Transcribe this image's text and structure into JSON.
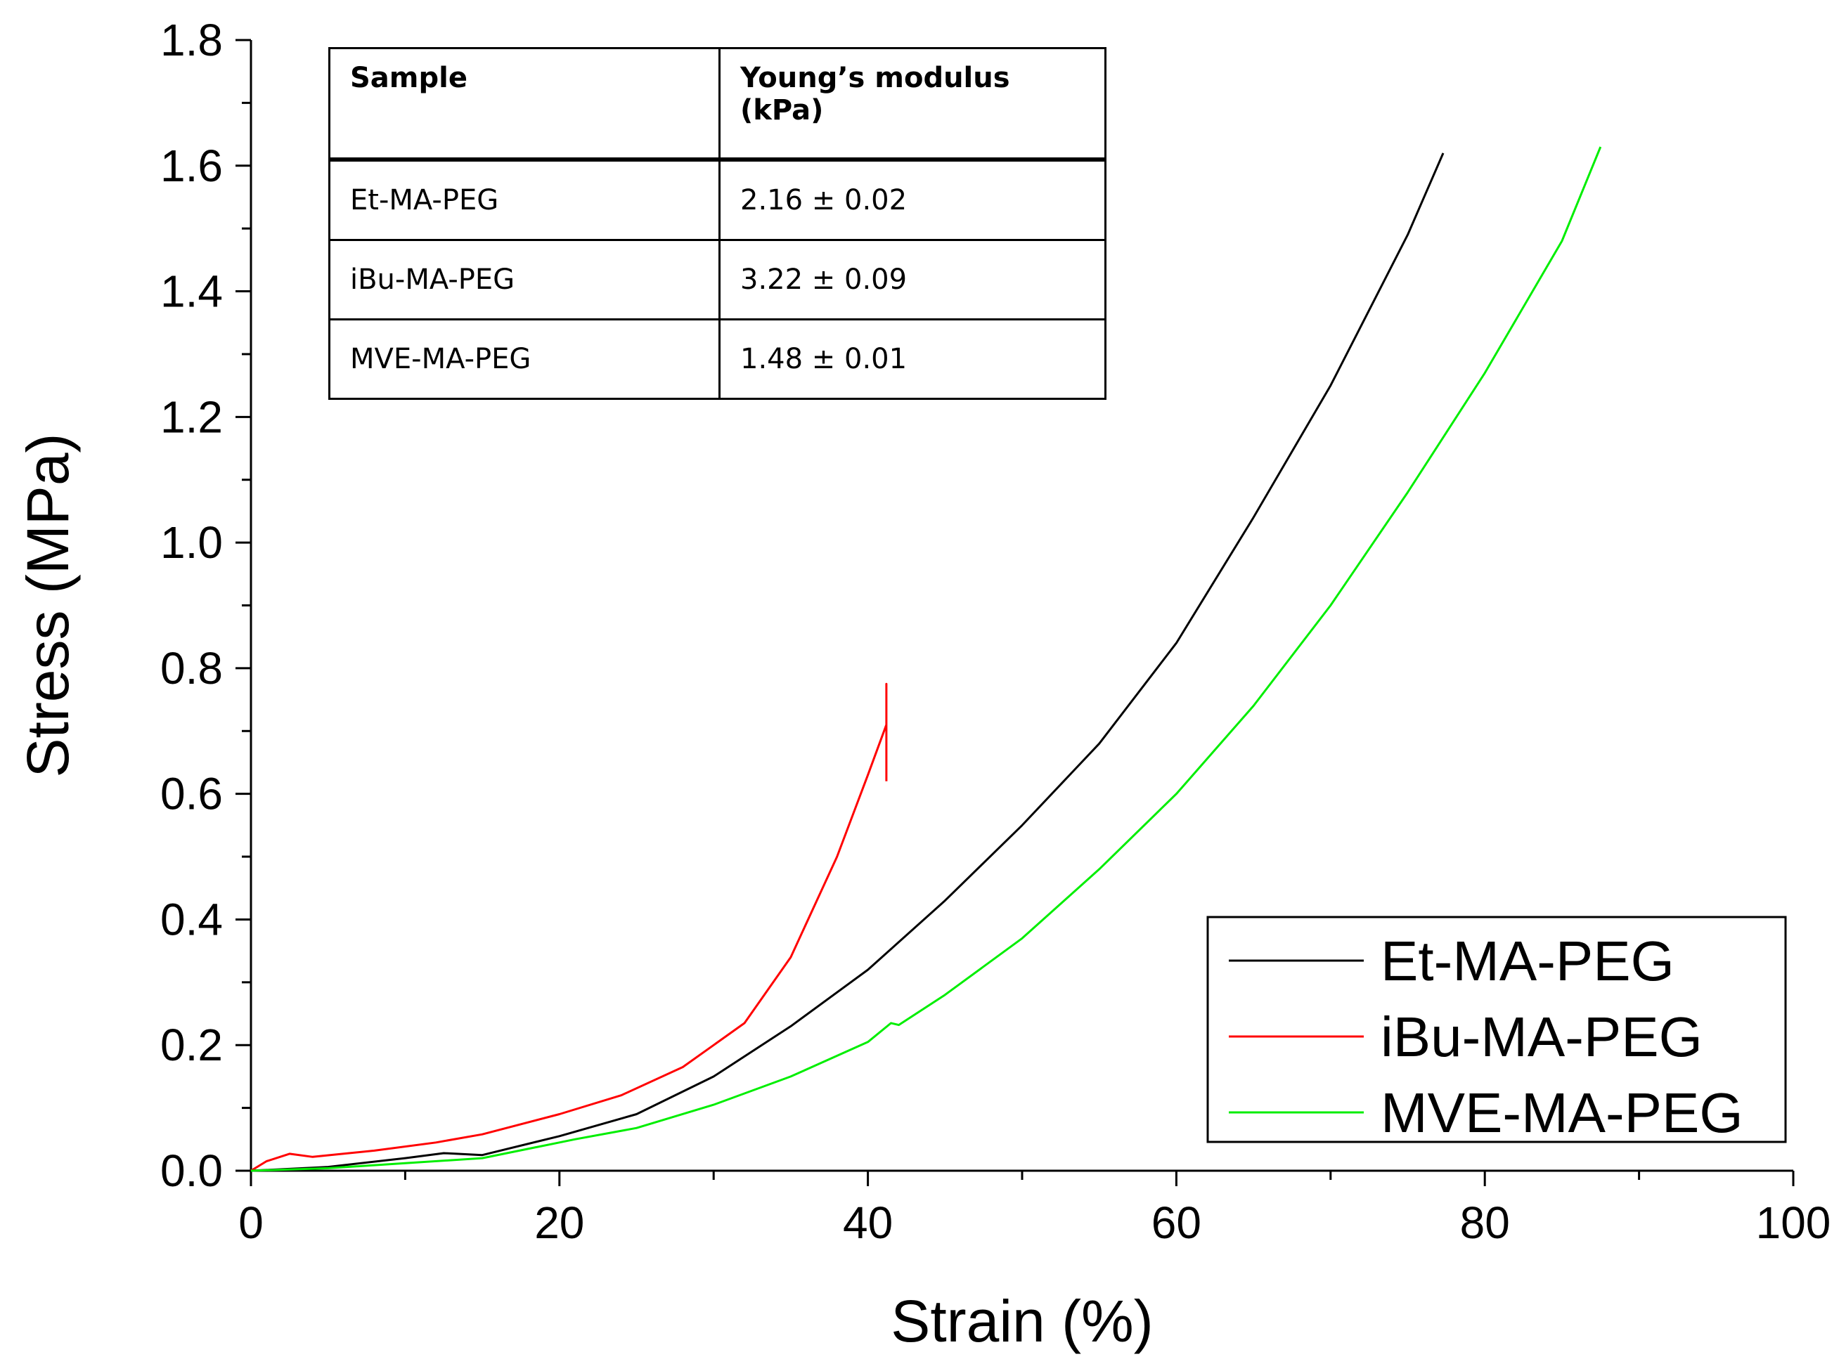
{
  "chart_data": {
    "type": "line",
    "title": "",
    "xlabel": "Strain (%)",
    "ylabel": "Stress (MPa)",
    "xlim": [
      0,
      100
    ],
    "ylim": [
      0,
      1.8
    ],
    "x_ticks": [
      "0",
      "20",
      "40",
      "60",
      "80",
      "100"
    ],
    "y_ticks": [
      "0.0",
      "0.2",
      "0.4",
      "0.6",
      "0.8",
      "1.0",
      "1.2",
      "1.4",
      "1.6",
      "1.8"
    ],
    "grid": false,
    "legend_position": "bottom-right",
    "series": [
      {
        "name": "Et-MA-PEG",
        "color": "#000000",
        "x": [
          0,
          5,
          10,
          12.5,
          15,
          20,
          25,
          30,
          35,
          40,
          45,
          50,
          55,
          60,
          65,
          70,
          75,
          77.3
        ],
        "y": [
          0,
          0.006,
          0.02,
          0.028,
          0.025,
          0.055,
          0.09,
          0.15,
          0.23,
          0.32,
          0.43,
          0.55,
          0.68,
          0.84,
          1.04,
          1.25,
          1.49,
          1.62
        ]
      },
      {
        "name": "iBu-MA-PEG",
        "color": "#ff0000",
        "x": [
          0,
          1,
          2.5,
          4,
          8,
          12,
          15,
          20,
          24,
          28,
          32,
          35,
          38,
          40,
          41.2,
          41.2,
          41.2
        ],
        "y": [
          0,
          0.015,
          0.027,
          0.022,
          0.032,
          0.045,
          0.058,
          0.09,
          0.12,
          0.165,
          0.235,
          0.34,
          0.5,
          0.63,
          0.71,
          0.775,
          0.62
        ]
      },
      {
        "name": "MVE-MA-PEG",
        "color": "#00ee00",
        "x": [
          0,
          5,
          10,
          15,
          20,
          21,
          25,
          30,
          35,
          40,
          41.5,
          42,
          45,
          50,
          55,
          60,
          65,
          70,
          75,
          80,
          85,
          87.5
        ],
        "y": [
          0,
          0.004,
          0.012,
          0.02,
          0.045,
          0.05,
          0.068,
          0.105,
          0.15,
          0.205,
          0.235,
          0.232,
          0.28,
          0.37,
          0.48,
          0.6,
          0.74,
          0.9,
          1.08,
          1.27,
          1.48,
          1.63
        ]
      }
    ]
  },
  "inset_table": {
    "headers": [
      "Sample",
      "Young’s modulus (kPa)"
    ],
    "rows": [
      [
        "Et-MA-PEG",
        "2.16 ± 0.02"
      ],
      [
        "iBu-MA-PEG",
        "3.22 ± 0.09"
      ],
      [
        "MVE-MA-PEG",
        "1.48 ± 0.01"
      ]
    ]
  }
}
